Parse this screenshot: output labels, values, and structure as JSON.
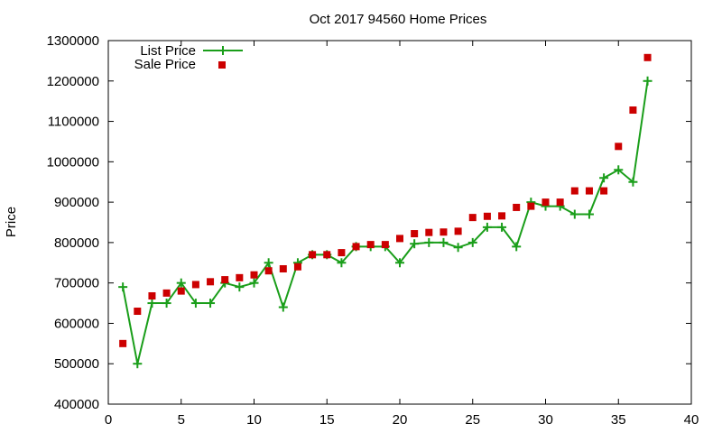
{
  "chart_data": {
    "type": "line",
    "title": "Oct 2017 94560 Home Prices",
    "xlabel": "",
    "ylabel": "Price",
    "xlim": [
      0,
      40
    ],
    "ylim": [
      400000,
      1300000
    ],
    "x_ticks": [
      "0",
      "5",
      "10",
      "15",
      "20",
      "25",
      "30",
      "35",
      "40"
    ],
    "y_ticks": [
      "400000",
      "500000",
      "600000",
      "700000",
      "800000",
      "900000",
      "1000000",
      "1100000",
      "1200000",
      "1300000"
    ],
    "grid": false,
    "legend_position": "top-left",
    "series": [
      {
        "name": "List Price",
        "style": "line-with-plus-markers",
        "color": "#1a9e1a",
        "x": [
          1,
          2,
          3,
          4,
          5,
          6,
          7,
          8,
          9,
          10,
          11,
          12,
          13,
          14,
          15,
          16,
          17,
          18,
          19,
          20,
          21,
          22,
          23,
          24,
          25,
          26,
          27,
          28,
          29,
          30,
          31,
          32,
          33,
          34,
          35,
          36,
          37
        ],
        "y": [
          690000,
          500000,
          650000,
          650000,
          700000,
          650000,
          650000,
          700000,
          690000,
          700000,
          750000,
          640000,
          750000,
          770000,
          770000,
          750000,
          790000,
          790000,
          790000,
          750000,
          797000,
          800000,
          800000,
          788000,
          800000,
          838000,
          838000,
          790000,
          900000,
          890000,
          890000,
          870000,
          870000,
          960000,
          980000,
          950000,
          1200000
        ]
      },
      {
        "name": "Sale Price",
        "style": "square-markers",
        "color": "#cc0000",
        "x": [
          1,
          2,
          3,
          4,
          5,
          6,
          7,
          8,
          9,
          10,
          11,
          12,
          13,
          14,
          15,
          16,
          17,
          18,
          19,
          20,
          21,
          22,
          23,
          24,
          25,
          26,
          27,
          28,
          29,
          30,
          31,
          32,
          33,
          34,
          35,
          36,
          37
        ],
        "y": [
          550000,
          630000,
          668000,
          675000,
          680000,
          696000,
          703000,
          708000,
          713000,
          720000,
          730000,
          735000,
          740000,
          770000,
          770000,
          775000,
          790000,
          795000,
          795000,
          810000,
          822000,
          825000,
          826000,
          828000,
          862000,
          865000,
          866000,
          887000,
          890000,
          900000,
          900000,
          928000,
          928000,
          928000,
          1038000,
          1128000,
          1258000
        ]
      }
    ]
  }
}
